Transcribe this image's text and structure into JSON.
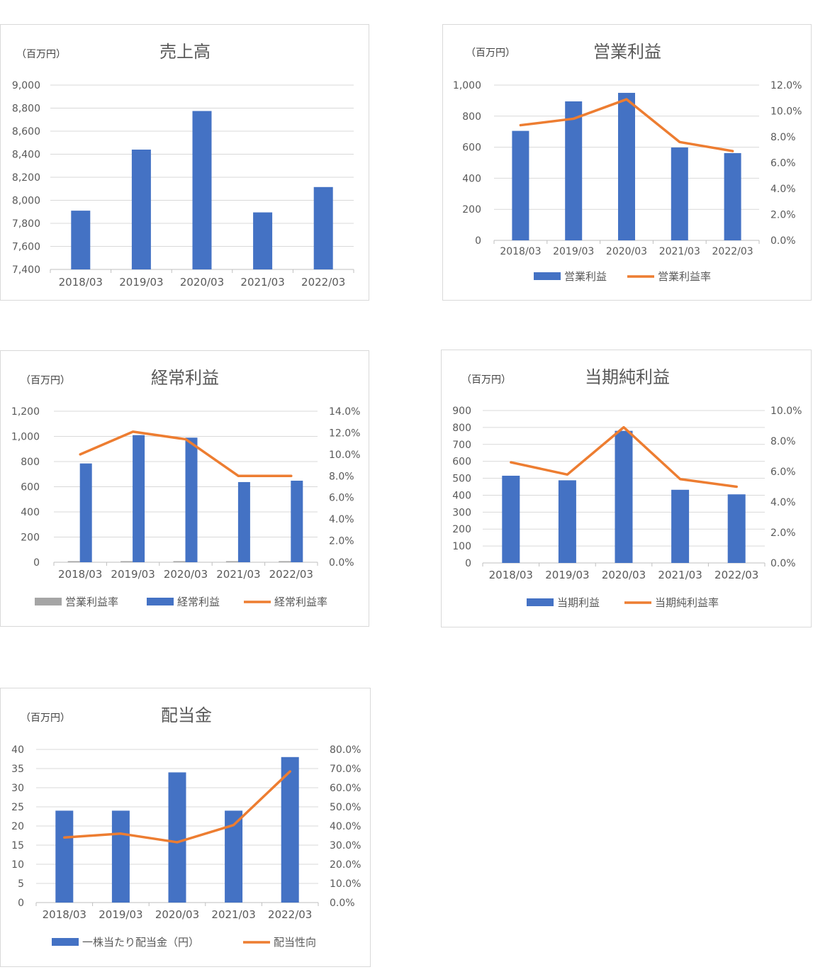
{
  "chart_data": [
    {
      "type": "bar",
      "title": "売上高",
      "unit": "（百万円）",
      "categories": [
        "2018/03",
        "2019/03",
        "2020/03",
        "2021/03",
        "2022/03"
      ],
      "y_ticks": [
        "7,400",
        "7,600",
        "7,800",
        "8,000",
        "8,200",
        "8,400",
        "8,600",
        "8,800",
        "9,000"
      ],
      "ylim": [
        7400,
        9000
      ],
      "grid": true,
      "series": [
        {
          "name": "",
          "type": "bar",
          "axis": "left",
          "values": [
            7910,
            8440,
            8775,
            7895,
            8115
          ]
        }
      ]
    },
    {
      "type": "bar",
      "title": "営業利益",
      "unit": "（百万円）",
      "categories": [
        "2018/03",
        "2019/03",
        "2020/03",
        "2021/03",
        "2022/03"
      ],
      "y_ticks": [
        "0",
        "200",
        "400",
        "600",
        "800",
        "1,000"
      ],
      "ylim": [
        0,
        1000
      ],
      "y2_ticks": [
        "0.0%",
        "2.0%",
        "4.0%",
        "6.0%",
        "8.0%",
        "10.0%",
        "12.0%"
      ],
      "y2lim": [
        0,
        12
      ],
      "grid": true,
      "legend_position": "bottom",
      "series": [
        {
          "name": "営業利益",
          "type": "bar",
          "axis": "left",
          "values": [
            705,
            895,
            950,
            598,
            562
          ]
        },
        {
          "name": "営業利益率",
          "type": "line",
          "axis": "right",
          "values": [
            8.9,
            9.4,
            10.9,
            7.6,
            6.9
          ]
        }
      ]
    },
    {
      "type": "bar",
      "title": "経常利益",
      "unit": "（百万円）",
      "categories": [
        "2018/03",
        "2019/03",
        "2020/03",
        "2021/03",
        "2022/03"
      ],
      "y_ticks": [
        "0",
        "200",
        "400",
        "600",
        "800",
        "1,000",
        "1,200"
      ],
      "ylim": [
        0,
        1200
      ],
      "y2_ticks": [
        "0.0%",
        "2.0%",
        "4.0%",
        "6.0%",
        "8.0%",
        "10.0%",
        "12.0%",
        "14.0%"
      ],
      "y2lim": [
        0,
        14
      ],
      "grid": true,
      "legend_position": "bottom",
      "series": [
        {
          "name": "営業利益率",
          "type": "bar",
          "axis": "right",
          "values": [
            0.1,
            0.1,
            0.1,
            0.1,
            0.1
          ]
        },
        {
          "name": "経常利益",
          "type": "bar",
          "axis": "left",
          "values": [
            785,
            1010,
            990,
            637,
            648
          ]
        },
        {
          "name": "経常利益率",
          "type": "line",
          "axis": "right",
          "values": [
            10.0,
            12.1,
            11.4,
            8.0,
            8.0
          ]
        }
      ]
    },
    {
      "type": "bar",
      "title": "当期純利益",
      "unit": "（百万円）",
      "categories": [
        "2018/03",
        "2019/03",
        "2020/03",
        "2021/03",
        "2022/03"
      ],
      "y_ticks": [
        "0",
        "100",
        "200",
        "300",
        "400",
        "500",
        "600",
        "700",
        "800",
        "900"
      ],
      "ylim": [
        0,
        900
      ],
      "y2_ticks": [
        "0.0%",
        "2.0%",
        "4.0%",
        "6.0%",
        "8.0%",
        "10.0%"
      ],
      "y2lim": [
        0,
        10
      ],
      "grid": true,
      "legend_position": "bottom",
      "series": [
        {
          "name": "当期利益",
          "type": "bar",
          "axis": "left",
          "values": [
            515,
            488,
            780,
            432,
            405
          ]
        },
        {
          "name": "当期純利益率",
          "type": "line",
          "axis": "right",
          "values": [
            6.6,
            5.8,
            8.9,
            5.5,
            5.0
          ]
        }
      ]
    },
    {
      "type": "bar",
      "title": "配当金",
      "unit": "（百万円）",
      "categories": [
        "2018/03",
        "2019/03",
        "2020/03",
        "2021/03",
        "2022/03"
      ],
      "y_ticks": [
        "0",
        "5",
        "10",
        "15",
        "20",
        "25",
        "30",
        "35",
        "40"
      ],
      "ylim": [
        0,
        40
      ],
      "y2_ticks": [
        "0.0%",
        "10.0%",
        "20.0%",
        "30.0%",
        "40.0%",
        "50.0%",
        "60.0%",
        "70.0%",
        "80.0%"
      ],
      "y2lim": [
        0,
        80
      ],
      "grid": true,
      "legend_position": "bottom",
      "series": [
        {
          "name": "一株当たり配当金（円）",
          "type": "bar",
          "axis": "left",
          "values": [
            24,
            24,
            34,
            24,
            38
          ]
        },
        {
          "name": "配当性向",
          "type": "line",
          "axis": "right",
          "values": [
            34.0,
            36.0,
            31.5,
            40.5,
            68.5
          ]
        }
      ]
    }
  ],
  "colors": {
    "bar": "#4472c4",
    "line": "#ed7d31",
    "gray_bar": "#a5a5a5",
    "grid": "#d9d9d9",
    "text": "#595959"
  }
}
